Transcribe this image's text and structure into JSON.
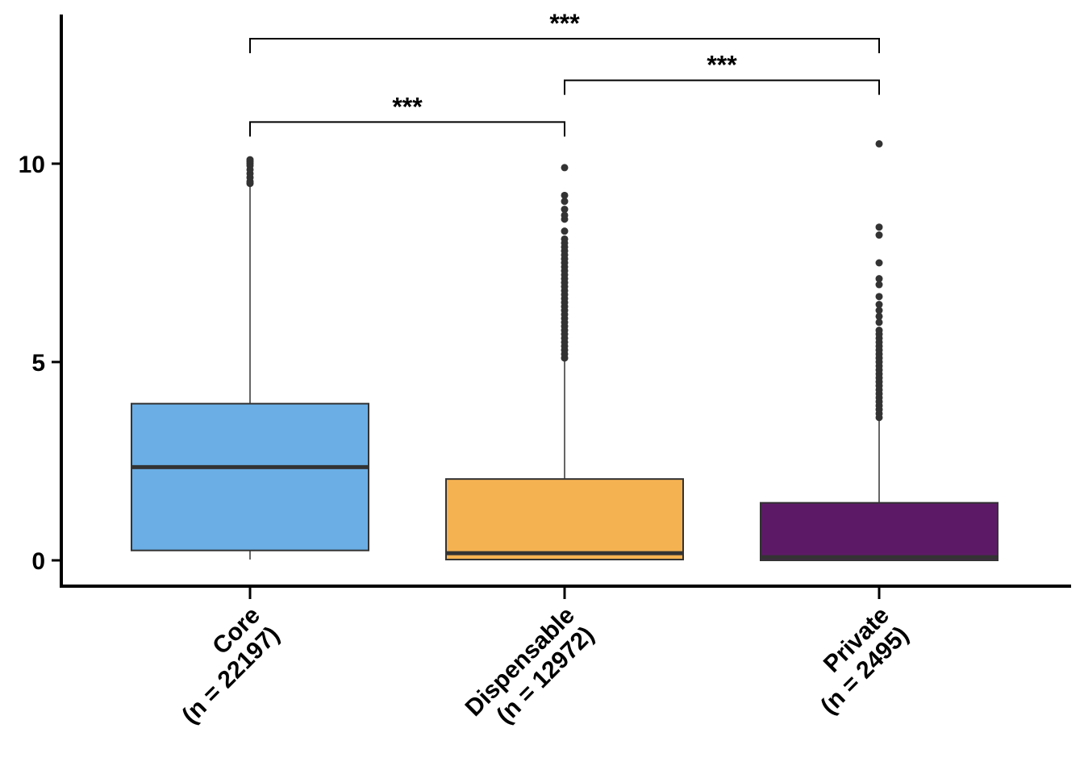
{
  "chart_data": {
    "type": "box",
    "title": "",
    "xlabel": "",
    "ylabel": "",
    "ylim": [
      -0.65,
      13.9
    ],
    "yticks": [
      0,
      5,
      10
    ],
    "groups": [
      {
        "label_line1": "Core",
        "label_line2": "(n = 22197)",
        "color": "#6aaee5",
        "q1": 0.25,
        "median": 2.35,
        "q3": 3.95,
        "whisker_low": 0.02,
        "whisker_high": 10.1,
        "outliers": [
          9.5,
          9.55,
          9.65,
          9.75,
          9.85,
          9.95,
          10.0,
          10.05,
          10.1
        ]
      },
      {
        "label_line1": "Dispensable",
        "label_line2": "(n = 12972)",
        "color": "#f5b251",
        "q1": 0.02,
        "median": 0.18,
        "q3": 2.05,
        "whisker_low": 0.0,
        "whisker_high": 5.1,
        "outliers": [
          5.1,
          5.2,
          5.3,
          5.4,
          5.5,
          5.6,
          5.7,
          5.8,
          5.9,
          6.0,
          6.1,
          6.2,
          6.3,
          6.4,
          6.5,
          6.6,
          6.7,
          6.8,
          6.9,
          7.0,
          7.1,
          7.2,
          7.3,
          7.4,
          7.5,
          7.6,
          7.7,
          7.8,
          7.9,
          8.0,
          8.1,
          8.3,
          8.6,
          8.7,
          8.85,
          9.05,
          9.2,
          9.9
        ]
      },
      {
        "label_line1": "Private",
        "label_line2": "(n = 2495)",
        "color": "#5c1a66",
        "q1": 0.0,
        "median": 0.08,
        "q3": 1.45,
        "whisker_low": 0.0,
        "whisker_high": 3.6,
        "outliers": [
          3.6,
          3.7,
          3.8,
          3.9,
          4.0,
          4.1,
          4.2,
          4.3,
          4.4,
          4.5,
          4.6,
          4.7,
          4.8,
          4.9,
          5.0,
          5.1,
          5.2,
          5.3,
          5.4,
          5.5,
          5.6,
          5.7,
          5.8,
          6.0,
          6.15,
          6.3,
          6.45,
          6.65,
          6.95,
          7.1,
          7.5,
          8.2,
          8.4,
          10.5
        ]
      }
    ],
    "comparisons": [
      {
        "from": 0,
        "to": 1,
        "y": 11.05,
        "label": "***"
      },
      {
        "from": 1,
        "to": 2,
        "y": 12.1,
        "label": "***"
      },
      {
        "from": 0,
        "to": 2,
        "y": 13.15,
        "label": "***"
      }
    ]
  }
}
